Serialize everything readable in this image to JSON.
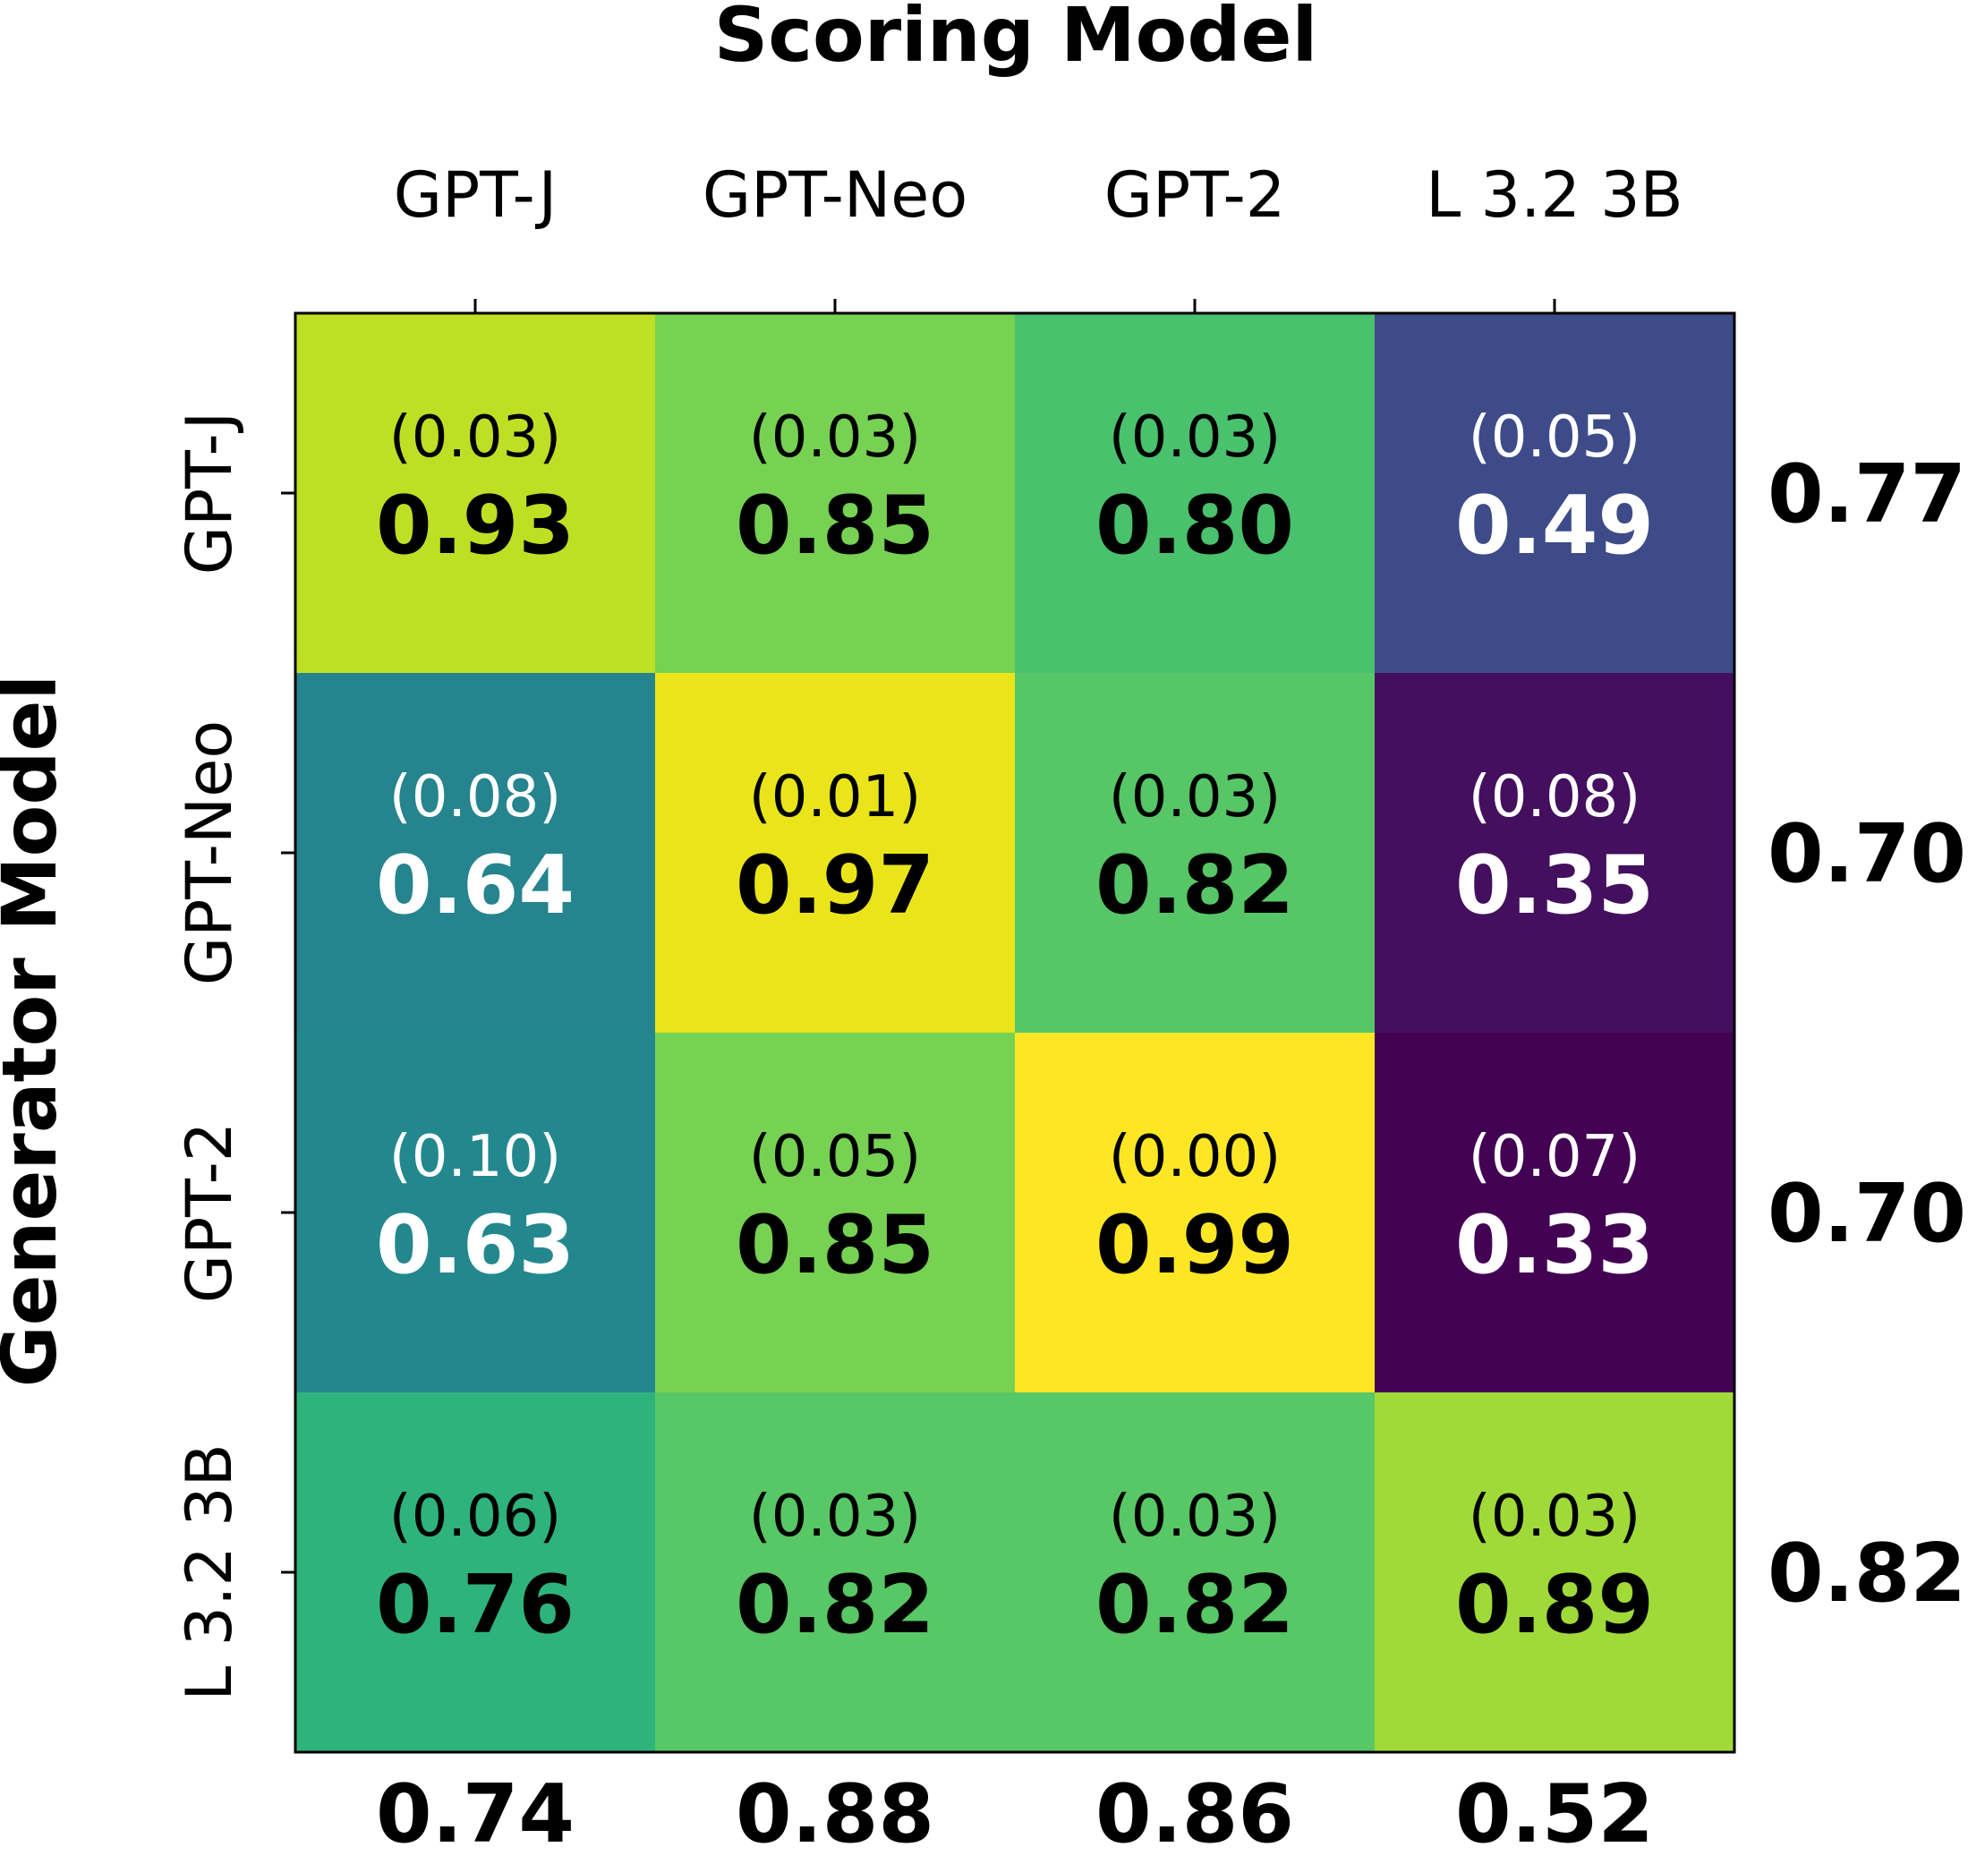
{
  "chart_data": {
    "type": "heatmap",
    "title": "Scoring Model",
    "xlabel": "Scoring Model",
    "ylabel": "Generator Model",
    "x_categories": [
      "GPT-J",
      "GPT-Neo",
      "GPT-2",
      "L 3.2 3B"
    ],
    "y_categories": [
      "GPT-J",
      "GPT-Neo",
      "GPT-2",
      "L 3.2 3B"
    ],
    "values": [
      [
        0.93,
        0.85,
        0.8,
        0.49
      ],
      [
        0.64,
        0.97,
        0.82,
        0.35
      ],
      [
        0.63,
        0.85,
        0.99,
        0.33
      ],
      [
        0.76,
        0.82,
        0.82,
        0.89
      ]
    ],
    "std": [
      [
        "(0.03)",
        "(0.03)",
        "(0.03)",
        "(0.05)"
      ],
      [
        "(0.08)",
        "(0.01)",
        "(0.03)",
        "(0.08)"
      ],
      [
        "(0.10)",
        "(0.05)",
        "(0.00)",
        "(0.07)"
      ],
      [
        "(0.06)",
        "(0.03)",
        "(0.03)",
        "(0.03)"
      ]
    ],
    "value_labels": [
      [
        "0.93",
        "0.85",
        "0.80",
        "0.49"
      ],
      [
        "0.64",
        "0.97",
        "0.82",
        "0.35"
      ],
      [
        "0.63",
        "0.85",
        "0.99",
        "0.33"
      ],
      [
        "0.76",
        "0.82",
        "0.82",
        "0.89"
      ]
    ],
    "row_means": [
      "0.77",
      "0.70",
      "0.70",
      "0.82"
    ],
    "col_means": [
      "0.74",
      "0.88",
      "0.86",
      "0.52"
    ],
    "cell_colors": [
      [
        "#bfdf24",
        "#77d153",
        "#4ac16d",
        "#3e4b89"
      ],
      [
        "#25848e",
        "#eae51a",
        "#56c667",
        "#440f5e"
      ],
      [
        "#23888e",
        "#77d153",
        "#fde725",
        "#430154"
      ],
      [
        "#2eb37c",
        "#58c765",
        "#58c765",
        "#a0da39"
      ]
    ],
    "text_colors": [
      [
        "#000000",
        "#000000",
        "#000000",
        "#ffffff"
      ],
      [
        "#ffffff",
        "#000000",
        "#000000",
        "#ffffff"
      ],
      [
        "#ffffff",
        "#000000",
        "#000000",
        "#ffffff"
      ],
      [
        "#000000",
        "#000000",
        "#000000",
        "#000000"
      ]
    ],
    "colormap": "viridis"
  }
}
